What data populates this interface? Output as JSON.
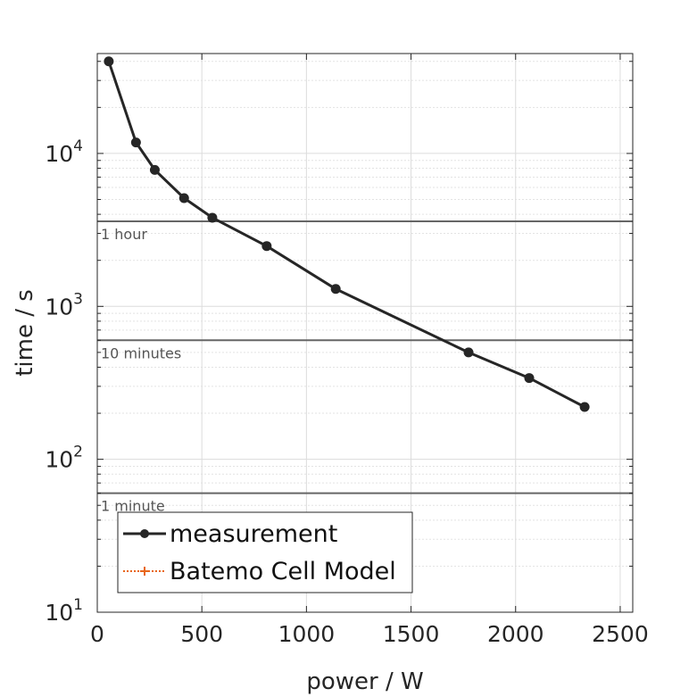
{
  "chart_data": {
    "type": "line",
    "xlabel": "power / W",
    "ylabel": "time / s",
    "xlim": [
      0,
      2560
    ],
    "ylim": [
      10,
      45000
    ],
    "yscale": "log",
    "grid": true,
    "xticks": [
      0,
      500,
      1000,
      1500,
      2000,
      2500
    ],
    "xtick_labels": [
      "0",
      "500",
      "1000",
      "1500",
      "2000",
      "2500"
    ],
    "yticks": [
      {
        "value": 10,
        "base": "10",
        "exp": "1"
      },
      {
        "value": 100,
        "base": "10",
        "exp": "2"
      },
      {
        "value": 1000,
        "base": "10",
        "exp": "3"
      },
      {
        "value": 10000,
        "base": "10",
        "exp": "4"
      }
    ],
    "series": [
      {
        "name": "measurement",
        "color": "#262626",
        "marker": "circle",
        "x": [
          55,
          185,
          275,
          415,
          550,
          810,
          1140,
          1775,
          2065,
          2330
        ],
        "y": [
          40000,
          11800,
          7800,
          5100,
          3800,
          2480,
          1300,
          500,
          340,
          220
        ]
      },
      {
        "name": "Batemo Cell Model",
        "color": "#E8661A",
        "marker": "plus",
        "linestyle": "dotted",
        "x": [],
        "y": []
      }
    ],
    "reference_lines": [
      {
        "label": "1 hour",
        "y": 3600,
        "color": "#666666"
      },
      {
        "label": "10 minutes",
        "y": 600,
        "color": "#666666"
      },
      {
        "label": "1 minute",
        "y": 60,
        "color": "#666666"
      }
    ],
    "legend_position": "bottom-left"
  }
}
